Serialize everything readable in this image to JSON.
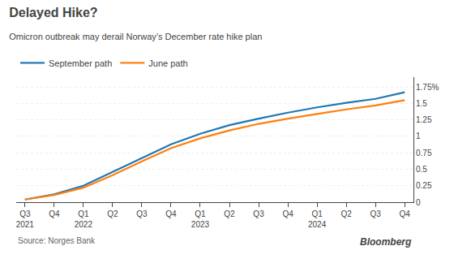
{
  "chart_data": {
    "type": "line",
    "title": "Delayed Hike?",
    "subtitle": "Omicron outbreak may derail Norway’s December rate hike plan",
    "annotations": [
      "Source: Norges Bank",
      "Bloomberg"
    ],
    "categories": [
      "Q3\n2021",
      "Q4",
      "Q1\n2022",
      "Q2",
      "Q3",
      "Q4",
      "Q1\n2023",
      "Q2",
      "Q3",
      "Q4",
      "Q1\n2024",
      "Q2",
      "Q3",
      "Q4"
    ],
    "series": [
      {
        "name": "September path",
        "values": [
          0.04,
          0.12,
          0.25,
          0.46,
          0.68,
          0.88,
          1.04,
          1.17,
          1.27,
          1.36,
          1.44,
          1.51,
          1.57,
          1.67
        ]
      },
      {
        "name": "June path",
        "values": [
          0.04,
          0.11,
          0.22,
          0.41,
          0.62,
          0.82,
          0.97,
          1.09,
          1.19,
          1.27,
          1.34,
          1.41,
          1.47,
          1.55
        ]
      }
    ],
    "ylim": [
      0,
      1.9
    ],
    "yticks": [
      0,
      0.25,
      0.5,
      0.75,
      1,
      1.25,
      1.5,
      {
        "value": 1.75,
        "label": "1.75%"
      }
    ],
    "grid": true,
    "legend": "top left"
  }
}
